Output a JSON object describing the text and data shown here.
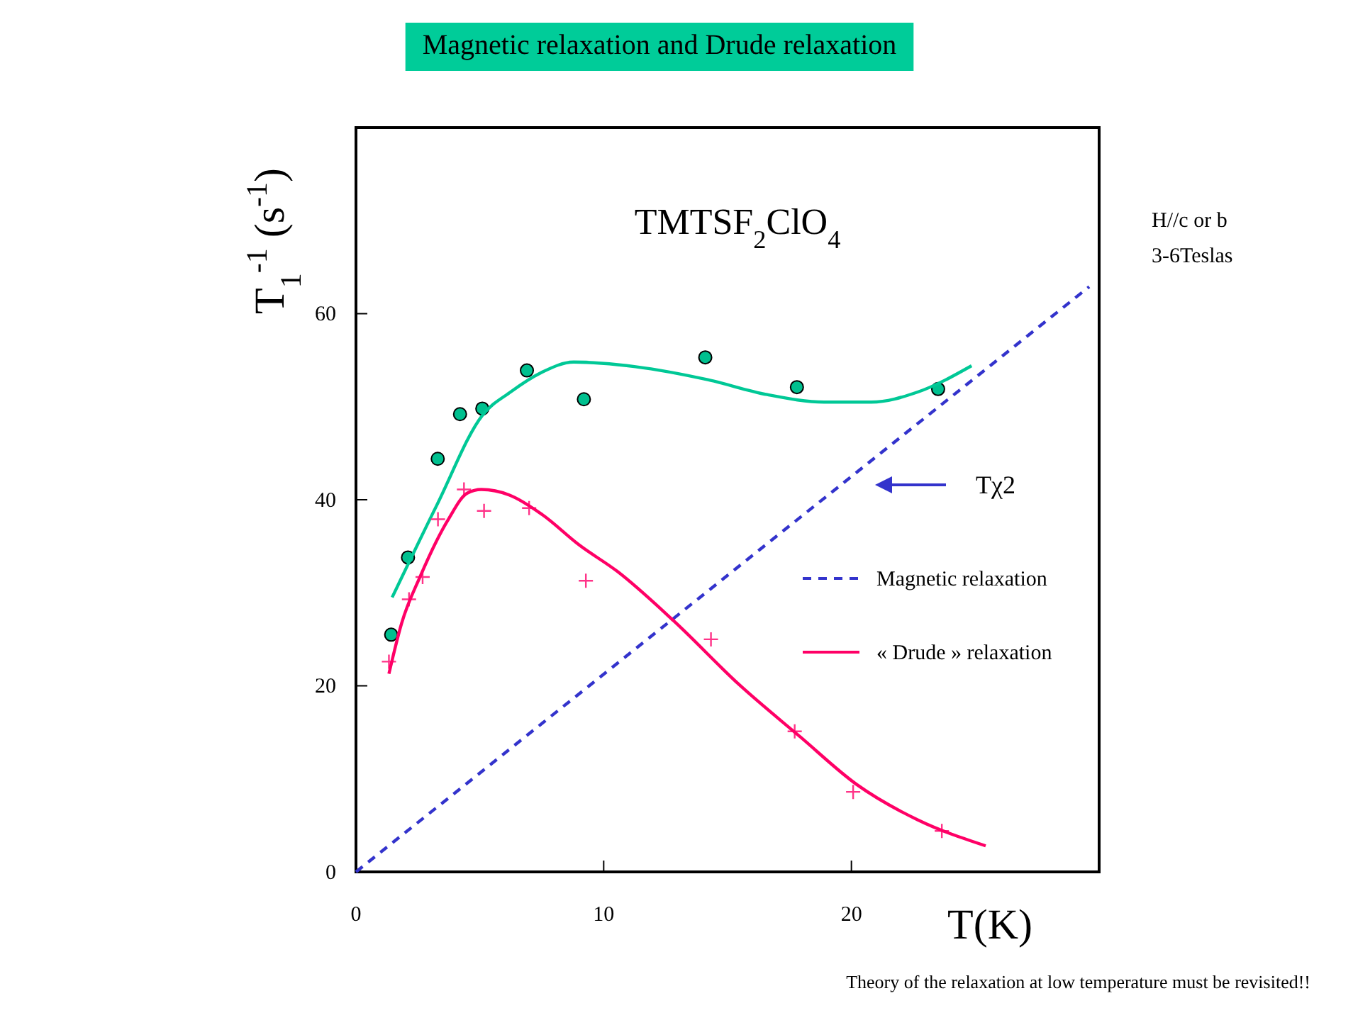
{
  "chart_data": {
    "type": "line",
    "title": "Magnetic relaxation and Drude relaxation",
    "xlabel": "T(K)",
    "ylabel": "T$_{1}$$^{-1}$ (s$^{-1}$)",
    "xlim": [
      0,
      30
    ],
    "xticks": [
      0,
      10,
      20
    ],
    "ylim": [
      0,
      80
    ],
    "yticks": [
      0,
      20,
      40,
      60
    ],
    "legend": "right",
    "annotations": [
      "TMTSF$_{2}$ClO$_{4}$",
      "H//c or b",
      "3-6Teslas",
      "Tχ2",
      "Theory of the relaxation at low temperature must be revisited!!"
    ],
    "series": [
      {
        "type": "scatter",
        "marker": "circle",
        "color": "#00c08f",
        "x": [
          1.42,
          2.1,
          3.3,
          4.2,
          5.1,
          6.9,
          9.2,
          14.1,
          17.8,
          23.5
        ],
        "values": [
          25.5,
          33.8,
          44.4,
          49.2,
          49.8,
          53.9,
          50.8,
          55.3,
          52.1,
          51.9
        ]
      },
      {
        "color": "#00c896",
        "line_style": "solid",
        "x": [
          1.46,
          3.26,
          5.11,
          6.25,
          7.5,
          8.79,
          11.29,
          14.2,
          16.6,
          18.9,
          20.8,
          22.7,
          24.85
        ],
        "values": [
          29.5,
          39.4,
          49.1,
          51.6,
          53.7,
          54.8,
          54.3,
          52.9,
          51.3,
          50.5,
          50.5,
          51.6,
          54.4
        ]
      },
      {
        "type": "scatter",
        "marker": "cross",
        "color": "#ff3388",
        "x": [
          1.33,
          2.14,
          2.69,
          3.31,
          4.36,
          5.17,
          6.99,
          9.28,
          14.33,
          17.71,
          20.07,
          23.65
        ],
        "values": [
          22.6,
          29.3,
          31.7,
          37.9,
          41.1,
          38.8,
          39.1,
          31.3,
          25.0,
          15.1,
          8.6,
          4.4
        ]
      },
      {
        "name": "Magnetic relaxation",
        "color": "#3333cc",
        "line_style": "dashed",
        "x": [
          0,
          29.6
        ],
        "values": [
          0,
          62.9
        ]
      },
      {
        "name": "« Drude » relaxation",
        "color": "#ff0066",
        "line_style": "solid",
        "x": [
          1.33,
          1.84,
          2.6,
          3.73,
          4.49,
          5.06,
          6.2,
          7.52,
          9.03,
          10.55,
          12.82,
          15.48,
          17.94,
          20.21,
          22.67,
          25.42
        ],
        "values": [
          21.3,
          26.7,
          31.8,
          37.9,
          40.7,
          41.1,
          40.5,
          38.4,
          35.1,
          32.3,
          27.0,
          20.1,
          14.5,
          9.4,
          5.6,
          2.8
        ]
      }
    ]
  }
}
